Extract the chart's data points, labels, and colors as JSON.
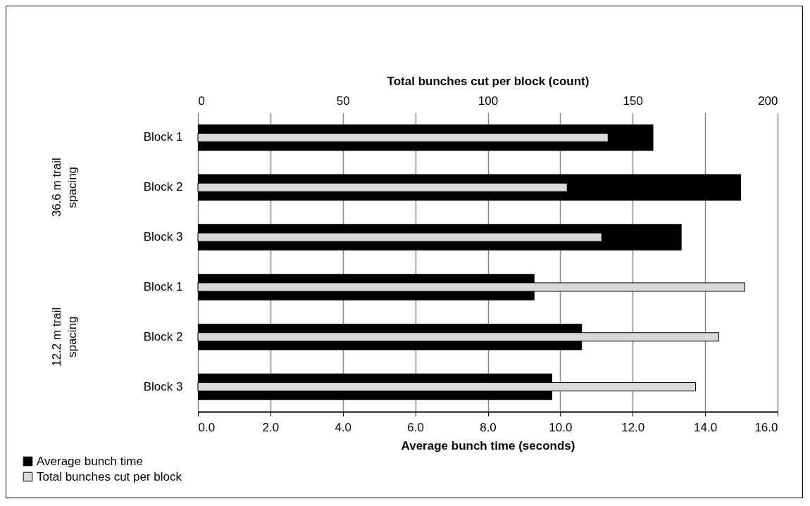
{
  "chart_data": {
    "type": "bar",
    "orientation": "horizontal",
    "categories": [
      "Block 1",
      "Block 2",
      "Block 3",
      "Block 1",
      "Block 2",
      "Block 3"
    ],
    "series": [
      {
        "name": "Average bunch time",
        "color": "#000000",
        "values": [
          12.57,
          14.99,
          13.35,
          9.29,
          10.6,
          9.78
        ]
      },
      {
        "name": "Total bunches cut per block",
        "color": "#d9d9d9",
        "axis": "x2",
        "values": [
          141.5,
          127.4,
          139.3,
          188.7,
          179.7,
          171.7
        ]
      }
    ],
    "xlabel": "Average bunch time (seconds)",
    "x2label": "Total bunches cut per block (count)",
    "xlim": [
      0,
      16
    ],
    "xticks": [
      {
        "value": 0,
        "label": "0.0"
      },
      {
        "value": 2,
        "label": "2.0"
      },
      {
        "value": 4,
        "label": "4.0"
      },
      {
        "value": 6,
        "label": "6.0"
      },
      {
        "value": 8,
        "label": "8.0"
      },
      {
        "value": 10,
        "label": "10.0"
      },
      {
        "value": 12,
        "label": "12.0"
      },
      {
        "value": 14,
        "label": "14.0"
      },
      {
        "value": 16,
        "label": "16.0"
      }
    ],
    "x2lim": [
      0,
      200
    ],
    "x2ticks": [
      0,
      50,
      100,
      150,
      200
    ],
    "annotations": [
      "36.6 m trail spacing",
      "12.2 m trail spacing"
    ],
    "grid": "x",
    "legend": "bottom left"
  }
}
